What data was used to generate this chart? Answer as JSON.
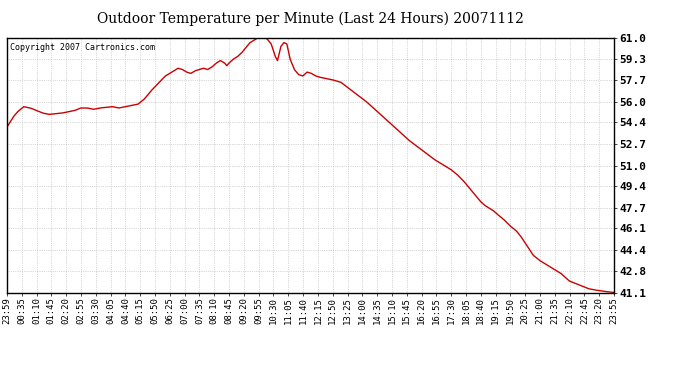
{
  "title": "Outdoor Temperature per Minute (Last 24 Hours) 20071112",
  "copyright_text": "Copyright 2007 Cartronics.com",
  "line_color": "#cc0000",
  "background_color": "#ffffff",
  "plot_bg_color": "#ffffff",
  "grid_color": "#a0a0a0",
  "yticks": [
    41.1,
    42.8,
    44.4,
    46.1,
    47.7,
    49.4,
    51.0,
    52.7,
    54.4,
    56.0,
    57.7,
    59.3,
    61.0
  ],
  "ymin": 41.1,
  "ymax": 61.0,
  "xtick_labels": [
    "23:59",
    "00:35",
    "01:10",
    "01:45",
    "02:20",
    "02:55",
    "03:30",
    "04:05",
    "04:40",
    "05:15",
    "05:50",
    "06:25",
    "07:00",
    "07:35",
    "08:10",
    "08:45",
    "09:20",
    "09:55",
    "10:30",
    "11:05",
    "11:40",
    "12:15",
    "12:50",
    "13:25",
    "14:00",
    "14:35",
    "15:10",
    "15:45",
    "16:20",
    "16:55",
    "17:30",
    "18:05",
    "18:40",
    "19:15",
    "19:50",
    "20:25",
    "21:00",
    "21:35",
    "22:10",
    "22:45",
    "23:20",
    "23:55"
  ],
  "control_points": [
    [
      0,
      54.0
    ],
    [
      15,
      54.8
    ],
    [
      25,
      55.2
    ],
    [
      40,
      55.6
    ],
    [
      55,
      55.5
    ],
    [
      70,
      55.3
    ],
    [
      85,
      55.1
    ],
    [
      100,
      55.0
    ],
    [
      115,
      55.05
    ],
    [
      130,
      55.1
    ],
    [
      145,
      55.2
    ],
    [
      160,
      55.3
    ],
    [
      175,
      55.5
    ],
    [
      190,
      55.5
    ],
    [
      205,
      55.4
    ],
    [
      220,
      55.5
    ],
    [
      235,
      55.55
    ],
    [
      250,
      55.6
    ],
    [
      265,
      55.5
    ],
    [
      280,
      55.6
    ],
    [
      295,
      55.7
    ],
    [
      310,
      55.8
    ],
    [
      325,
      56.2
    ],
    [
      340,
      56.8
    ],
    [
      360,
      57.5
    ],
    [
      375,
      58.0
    ],
    [
      390,
      58.3
    ],
    [
      405,
      58.6
    ],
    [
      415,
      58.5
    ],
    [
      425,
      58.3
    ],
    [
      435,
      58.2
    ],
    [
      445,
      58.4
    ],
    [
      455,
      58.5
    ],
    [
      465,
      58.6
    ],
    [
      475,
      58.5
    ],
    [
      485,
      58.7
    ],
    [
      495,
      59.0
    ],
    [
      505,
      59.2
    ],
    [
      515,
      59.0
    ],
    [
      520,
      58.8
    ],
    [
      525,
      59.0
    ],
    [
      535,
      59.3
    ],
    [
      545,
      59.5
    ],
    [
      555,
      59.8
    ],
    [
      565,
      60.2
    ],
    [
      575,
      60.6
    ],
    [
      585,
      60.8
    ],
    [
      595,
      61.0
    ],
    [
      605,
      61.0
    ],
    [
      615,
      60.9
    ],
    [
      625,
      60.5
    ],
    [
      635,
      59.5
    ],
    [
      640,
      59.2
    ],
    [
      648,
      60.3
    ],
    [
      655,
      60.6
    ],
    [
      662,
      60.5
    ],
    [
      670,
      59.3
    ],
    [
      680,
      58.5
    ],
    [
      690,
      58.1
    ],
    [
      700,
      58.0
    ],
    [
      710,
      58.3
    ],
    [
      720,
      58.2
    ],
    [
      730,
      58.0
    ],
    [
      740,
      57.9
    ],
    [
      755,
      57.8
    ],
    [
      770,
      57.7
    ],
    [
      790,
      57.5
    ],
    [
      810,
      57.0
    ],
    [
      830,
      56.5
    ],
    [
      850,
      56.0
    ],
    [
      870,
      55.4
    ],
    [
      890,
      54.8
    ],
    [
      910,
      54.2
    ],
    [
      930,
      53.6
    ],
    [
      950,
      53.0
    ],
    [
      970,
      52.5
    ],
    [
      990,
      52.0
    ],
    [
      1010,
      51.5
    ],
    [
      1030,
      51.1
    ],
    [
      1050,
      50.7
    ],
    [
      1065,
      50.3
    ],
    [
      1080,
      49.8
    ],
    [
      1095,
      49.2
    ],
    [
      1110,
      48.6
    ],
    [
      1120,
      48.2
    ],
    [
      1130,
      47.9
    ],
    [
      1140,
      47.7
    ],
    [
      1150,
      47.5
    ],
    [
      1160,
      47.2
    ],
    [
      1175,
      46.8
    ],
    [
      1190,
      46.3
    ],
    [
      1205,
      45.9
    ],
    [
      1215,
      45.5
    ],
    [
      1225,
      45.0
    ],
    [
      1235,
      44.5
    ],
    [
      1245,
      44.0
    ],
    [
      1260,
      43.6
    ],
    [
      1275,
      43.3
    ],
    [
      1290,
      43.0
    ],
    [
      1300,
      42.8
    ],
    [
      1310,
      42.6
    ],
    [
      1320,
      42.3
    ],
    [
      1330,
      42.0
    ],
    [
      1345,
      41.8
    ],
    [
      1360,
      41.6
    ],
    [
      1375,
      41.4
    ],
    [
      1390,
      41.3
    ],
    [
      1410,
      41.2
    ],
    [
      1436,
      41.1
    ]
  ]
}
